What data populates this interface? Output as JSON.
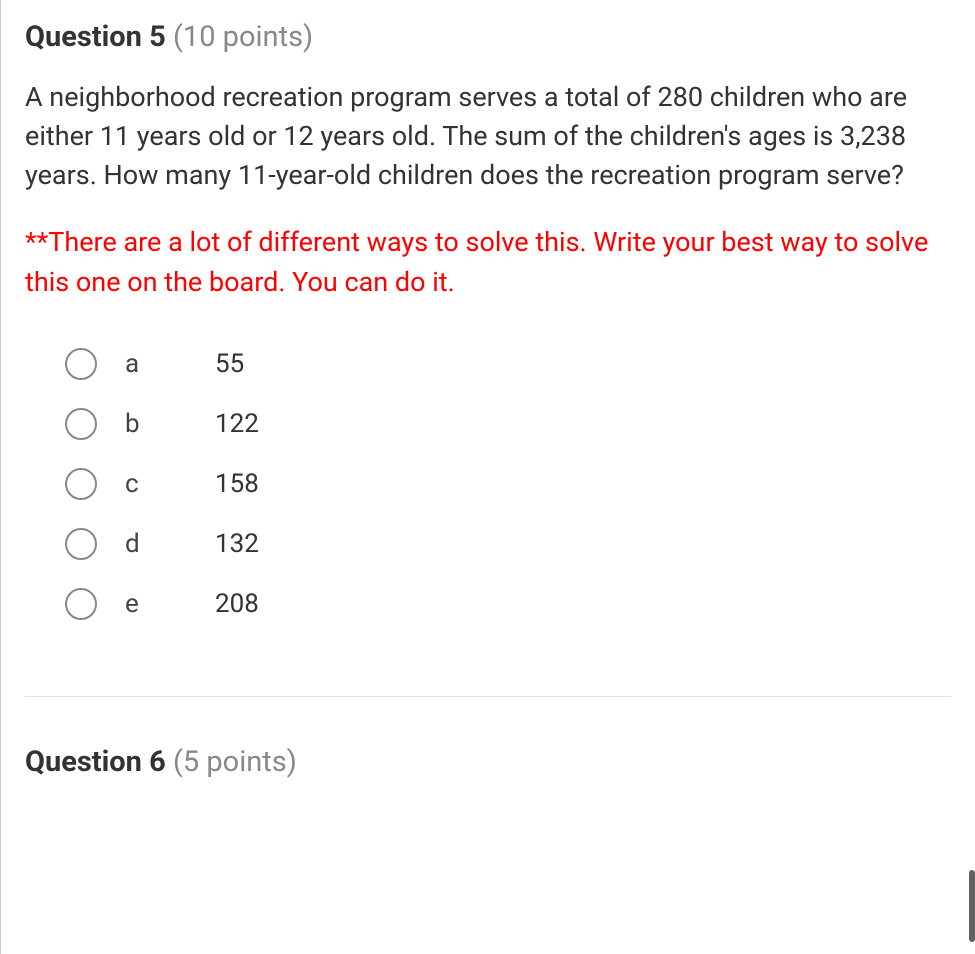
{
  "question5": {
    "number_label": "Question 5",
    "points_label": "(10 points)",
    "text": "A neighborhood recreation program serves a total of 280 children who are either 11 years old or 12 years old. The sum of the children's ages is 3,238 years. How many 11-year-old children does the recreation program serve?",
    "hint": "**There are a lot of different ways to solve this.  Write your best way to solve this one on the board.  You can do it.",
    "options": [
      {
        "letter": "a",
        "value": "55"
      },
      {
        "letter": "b",
        "value": "122"
      },
      {
        "letter": "c",
        "value": "158"
      },
      {
        "letter": "d",
        "value": "132"
      },
      {
        "letter": "e",
        "value": "208"
      }
    ]
  },
  "question6": {
    "number_label": "Question 6",
    "points_label": "(5 points)"
  },
  "colors": {
    "text_primary": "#333333",
    "text_secondary": "#888888",
    "hint_red": "#ff0000",
    "radio_border": "#888888",
    "divider": "#e0e0e0",
    "background": "#ffffff"
  },
  "typography": {
    "header_fontsize": 29,
    "body_fontsize": 27,
    "option_fontsize": 26,
    "font_family": "Roboto"
  }
}
